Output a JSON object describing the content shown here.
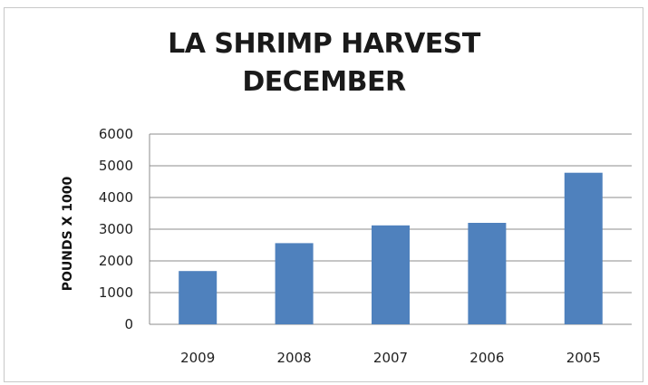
{
  "chart_data": {
    "type": "bar",
    "title_lines": [
      "LA SHRIMP HARVEST",
      "DECEMBER"
    ],
    "xlabel": "",
    "ylabel": "POUNDS X 1000",
    "categories": [
      "2009",
      "2008",
      "2007",
      "2006",
      "2005"
    ],
    "values": [
      1680,
      2560,
      3120,
      3200,
      4780
    ],
    "ylim": [
      0,
      6000
    ],
    "yticks": [
      0,
      1000,
      2000,
      3000,
      4000,
      5000,
      6000
    ],
    "grid": true,
    "legend": "none",
    "bar_color": "#4f81bd",
    "grid_color": "#8c8c8c"
  }
}
